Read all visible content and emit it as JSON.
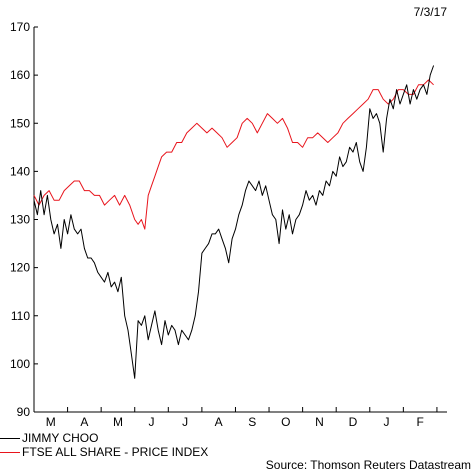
{
  "date_label": "7/3/17",
  "source": "Source: Thomson Reuters Datastream",
  "colors": {
    "jimmy_choo": "#000000",
    "ftse": "#e8141c",
    "axis": "#000000"
  },
  "chart_data": {
    "type": "line",
    "title": "",
    "xlabel": "",
    "ylabel": "",
    "ylim": [
      90,
      170
    ],
    "yticks": [
      90,
      100,
      110,
      120,
      130,
      140,
      150,
      160,
      170
    ],
    "x_ticks": [
      "M",
      "A",
      "M",
      "J",
      "J",
      "A",
      "S",
      "O",
      "N",
      "D",
      "J",
      "F"
    ],
    "x_range_months": [
      0,
      12.3
    ],
    "grid": false,
    "legend_position": "bottom-left",
    "series": [
      {
        "name": "JIMMY CHOO",
        "color": "#000000",
        "points": [
          [
            0.0,
            134
          ],
          [
            0.1,
            131
          ],
          [
            0.2,
            136
          ],
          [
            0.3,
            131
          ],
          [
            0.4,
            135
          ],
          [
            0.5,
            130
          ],
          [
            0.6,
            127
          ],
          [
            0.7,
            129
          ],
          [
            0.8,
            124
          ],
          [
            0.9,
            130
          ],
          [
            1.0,
            127
          ],
          [
            1.1,
            131
          ],
          [
            1.2,
            128
          ],
          [
            1.3,
            127
          ],
          [
            1.4,
            128
          ],
          [
            1.5,
            124
          ],
          [
            1.6,
            122
          ],
          [
            1.7,
            122
          ],
          [
            1.8,
            121
          ],
          [
            1.9,
            119
          ],
          [
            2.0,
            118
          ],
          [
            2.1,
            117
          ],
          [
            2.2,
            119
          ],
          [
            2.3,
            116
          ],
          [
            2.4,
            117
          ],
          [
            2.5,
            115
          ],
          [
            2.6,
            118
          ],
          [
            2.7,
            110
          ],
          [
            2.8,
            107
          ],
          [
            2.9,
            102
          ],
          [
            3.0,
            97
          ],
          [
            3.1,
            109
          ],
          [
            3.2,
            108
          ],
          [
            3.3,
            110
          ],
          [
            3.4,
            105
          ],
          [
            3.5,
            108
          ],
          [
            3.6,
            111
          ],
          [
            3.7,
            107
          ],
          [
            3.8,
            104
          ],
          [
            3.9,
            109
          ],
          [
            4.0,
            106
          ],
          [
            4.1,
            108
          ],
          [
            4.2,
            107
          ],
          [
            4.3,
            104
          ],
          [
            4.4,
            107
          ],
          [
            4.5,
            106
          ],
          [
            4.6,
            105
          ],
          [
            4.7,
            107
          ],
          [
            4.8,
            110
          ],
          [
            4.9,
            115
          ],
          [
            5.0,
            123
          ],
          [
            5.1,
            124
          ],
          [
            5.2,
            125
          ],
          [
            5.3,
            127
          ],
          [
            5.4,
            127
          ],
          [
            5.5,
            128
          ],
          [
            5.6,
            126
          ],
          [
            5.7,
            124
          ],
          [
            5.8,
            121
          ],
          [
            5.9,
            126
          ],
          [
            6.0,
            128
          ],
          [
            6.1,
            131
          ],
          [
            6.2,
            133
          ],
          [
            6.3,
            136
          ],
          [
            6.4,
            138
          ],
          [
            6.5,
            137
          ],
          [
            6.6,
            136
          ],
          [
            6.7,
            138
          ],
          [
            6.8,
            135
          ],
          [
            6.9,
            137
          ],
          [
            7.0,
            134
          ],
          [
            7.1,
            131
          ],
          [
            7.2,
            130
          ],
          [
            7.3,
            125
          ],
          [
            7.4,
            132
          ],
          [
            7.5,
            128
          ],
          [
            7.6,
            131
          ],
          [
            7.7,
            127
          ],
          [
            7.8,
            130
          ],
          [
            7.9,
            131
          ],
          [
            8.0,
            133
          ],
          [
            8.1,
            136
          ],
          [
            8.2,
            134
          ],
          [
            8.3,
            135
          ],
          [
            8.4,
            133
          ],
          [
            8.5,
            136
          ],
          [
            8.6,
            135
          ],
          [
            8.7,
            138
          ],
          [
            8.8,
            137
          ],
          [
            8.9,
            140
          ],
          [
            9.0,
            139
          ],
          [
            9.1,
            143
          ],
          [
            9.2,
            141
          ],
          [
            9.3,
            142
          ],
          [
            9.4,
            145
          ],
          [
            9.5,
            144
          ],
          [
            9.6,
            146
          ],
          [
            9.7,
            142
          ],
          [
            9.8,
            140
          ],
          [
            9.9,
            145
          ],
          [
            10.0,
            153
          ],
          [
            10.1,
            151
          ],
          [
            10.2,
            152
          ],
          [
            10.3,
            150
          ],
          [
            10.4,
            144
          ],
          [
            10.5,
            151
          ],
          [
            10.6,
            155
          ],
          [
            10.7,
            153
          ],
          [
            10.8,
            157
          ],
          [
            10.9,
            154
          ],
          [
            11.0,
            156
          ],
          [
            11.1,
            158
          ],
          [
            11.2,
            154
          ],
          [
            11.3,
            157
          ],
          [
            11.4,
            155
          ],
          [
            11.5,
            157
          ],
          [
            11.6,
            158
          ],
          [
            11.7,
            156
          ],
          [
            11.8,
            160
          ],
          [
            11.9,
            162
          ]
        ]
      },
      {
        "name": "FTSE ALL SHARE - PRICE INDEX",
        "color": "#e8141c",
        "points": [
          [
            0.0,
            135
          ],
          [
            0.15,
            133
          ],
          [
            0.3,
            135
          ],
          [
            0.45,
            136
          ],
          [
            0.6,
            134
          ],
          [
            0.75,
            134
          ],
          [
            0.9,
            136
          ],
          [
            1.05,
            137
          ],
          [
            1.2,
            138
          ],
          [
            1.35,
            138
          ],
          [
            1.5,
            136
          ],
          [
            1.65,
            136
          ],
          [
            1.8,
            135
          ],
          [
            1.95,
            135
          ],
          [
            2.1,
            133
          ],
          [
            2.25,
            134
          ],
          [
            2.4,
            135
          ],
          [
            2.55,
            133
          ],
          [
            2.7,
            135
          ],
          [
            2.85,
            133
          ],
          [
            3.0,
            130
          ],
          [
            3.1,
            129
          ],
          [
            3.2,
            130
          ],
          [
            3.3,
            128
          ],
          [
            3.4,
            135
          ],
          [
            3.5,
            137
          ],
          [
            3.6,
            139
          ],
          [
            3.7,
            141
          ],
          [
            3.8,
            143
          ],
          [
            3.95,
            144
          ],
          [
            4.1,
            144
          ],
          [
            4.25,
            146
          ],
          [
            4.4,
            146
          ],
          [
            4.55,
            148
          ],
          [
            4.7,
            149
          ],
          [
            4.85,
            150
          ],
          [
            5.0,
            149
          ],
          [
            5.15,
            148
          ],
          [
            5.3,
            149
          ],
          [
            5.45,
            148
          ],
          [
            5.6,
            147
          ],
          [
            5.75,
            145
          ],
          [
            5.9,
            146
          ],
          [
            6.05,
            147
          ],
          [
            6.2,
            150
          ],
          [
            6.35,
            151
          ],
          [
            6.5,
            150
          ],
          [
            6.65,
            148
          ],
          [
            6.8,
            150
          ],
          [
            6.95,
            152
          ],
          [
            7.1,
            151
          ],
          [
            7.25,
            150
          ],
          [
            7.4,
            151
          ],
          [
            7.55,
            149
          ],
          [
            7.7,
            146
          ],
          [
            7.85,
            146
          ],
          [
            8.0,
            145
          ],
          [
            8.15,
            147
          ],
          [
            8.3,
            147
          ],
          [
            8.45,
            148
          ],
          [
            8.6,
            147
          ],
          [
            8.75,
            146
          ],
          [
            8.9,
            147
          ],
          [
            9.05,
            148
          ],
          [
            9.2,
            150
          ],
          [
            9.35,
            151
          ],
          [
            9.5,
            152
          ],
          [
            9.65,
            153
          ],
          [
            9.8,
            154
          ],
          [
            9.95,
            155
          ],
          [
            10.1,
            157
          ],
          [
            10.25,
            157
          ],
          [
            10.4,
            155
          ],
          [
            10.55,
            154
          ],
          [
            10.7,
            155
          ],
          [
            10.85,
            157
          ],
          [
            11.0,
            157
          ],
          [
            11.15,
            156
          ],
          [
            11.3,
            156
          ],
          [
            11.45,
            158
          ],
          [
            11.6,
            158
          ],
          [
            11.75,
            159
          ],
          [
            11.9,
            158
          ]
        ]
      }
    ]
  }
}
